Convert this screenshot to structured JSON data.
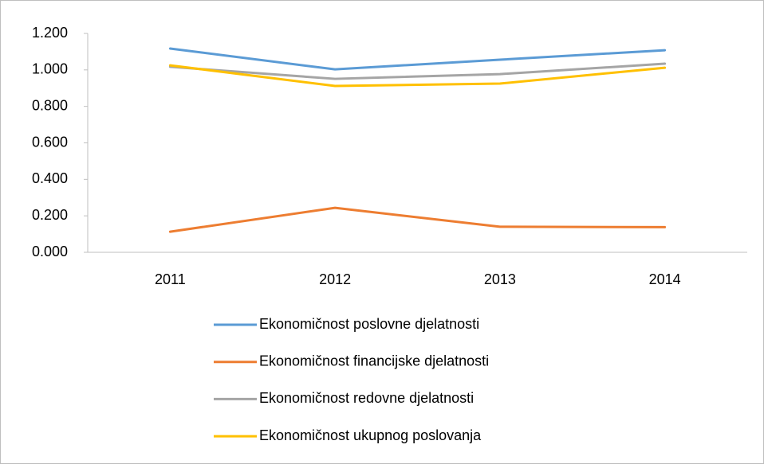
{
  "chart_data": {
    "type": "line",
    "categories": [
      "2011",
      "2012",
      "2013",
      "2014"
    ],
    "series": [
      {
        "name": "Ekonomičnost poslovne djelatnosti",
        "color": "#5b9bd5",
        "values": [
          1.117,
          1.003,
          1.056,
          1.108
        ]
      },
      {
        "name": "Ekonomičnost financijske djelatnosti",
        "color": "#ed7d31",
        "values": [
          0.113,
          0.244,
          0.14,
          0.138
        ]
      },
      {
        "name": "Ekonomičnost redovne djelatnosti",
        "color": "#a5a5a5",
        "values": [
          1.017,
          0.951,
          0.977,
          1.034
        ]
      },
      {
        "name": "Ekonomičnost ukupnog poslovanja",
        "color": "#ffc000",
        "values": [
          1.025,
          0.912,
          0.925,
          1.012
        ]
      }
    ],
    "ylim": [
      0,
      1.2
    ],
    "yticks": [
      {
        "value": 0,
        "label": "0.000"
      },
      {
        "value": 0.2,
        "label": "0.200"
      },
      {
        "value": 0.4,
        "label": "0.400"
      },
      {
        "value": 0.6,
        "label": "0.600"
      },
      {
        "value": 0.8,
        "label": "0.800"
      },
      {
        "value": 1.0,
        "label": "1.000"
      },
      {
        "value": 1.2,
        "label": "1.200"
      }
    ],
    "grid": false,
    "legend": "bottom"
  }
}
